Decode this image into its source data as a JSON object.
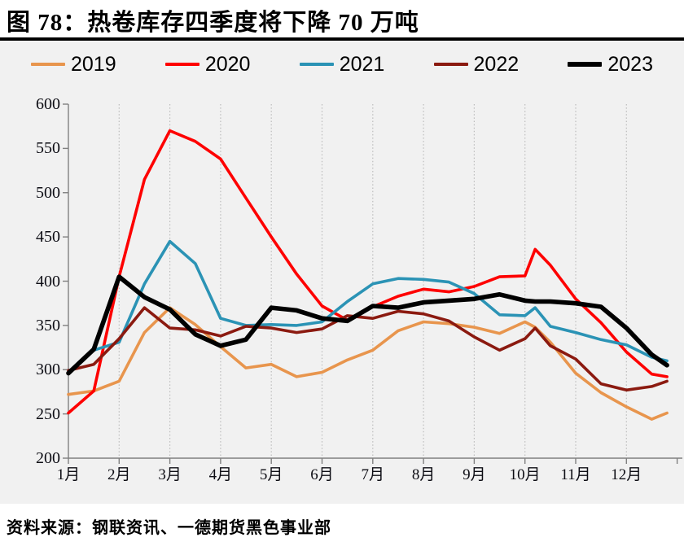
{
  "page": {
    "title": "图 78：热卷库存四季度将下降 70 万吨",
    "source": "资料来源：钢联资讯、一德期货黑色事业部"
  },
  "colors": {
    "panel_bg": "#f1f1f1",
    "grid": "#bcbcbc",
    "axis": "#808080",
    "text": "#0d0d14"
  },
  "chart_data": {
    "type": "line",
    "title": "图 78：热卷库存四季度将下降 70 万吨",
    "xlabel": "",
    "ylabel": "",
    "ylim": [
      200,
      600
    ],
    "yticks": [
      600,
      550,
      500,
      450,
      400,
      350,
      300,
      250,
      200
    ],
    "xticklabels": [
      "1月",
      "2月",
      "3月",
      "4月",
      "5月",
      "6月",
      "7月",
      "8月",
      "9月",
      "10月",
      "11月",
      "12月"
    ],
    "grid": "vertical-dotted",
    "legend_position": "top",
    "x_months": [
      1,
      1.5,
      2,
      2.5,
      3,
      3.5,
      4,
      4.5,
      5,
      5.5,
      6,
      6.5,
      7,
      7.5,
      8,
      8.5,
      9,
      9.5,
      10,
      10.2,
      10.5,
      11,
      11.5,
      12,
      12.5,
      12.8
    ],
    "series": [
      {
        "name": "2019",
        "color": "#E8954D",
        "width": 3.6,
        "values": [
          272,
          276,
          287,
          342,
          370,
          351,
          326,
          302,
          306,
          292,
          297,
          311,
          322,
          344,
          354,
          352,
          348,
          341,
          354,
          348,
          331,
          296,
          274,
          258,
          244,
          251
        ]
      },
      {
        "name": "2020",
        "color": "#FE0000",
        "width": 3.6,
        "values": [
          251,
          276,
          405,
          515,
          570,
          558,
          538,
          494,
          450,
          408,
          372,
          356,
          371,
          383,
          391,
          388,
          394,
          405,
          406,
          436,
          418,
          380,
          353,
          320,
          295,
          292
        ]
      },
      {
        "name": "2021",
        "color": "#2B93B5",
        "width": 3.6,
        "values": [
          null,
          322,
          331,
          397,
          445,
          420,
          358,
          350,
          351,
          350,
          354,
          377,
          397,
          403,
          402,
          399,
          386,
          362,
          361,
          370,
          349,
          342,
          334,
          328,
          314,
          310
        ]
      },
      {
        "name": "2022",
        "color": "#8B1A10",
        "width": 3.6,
        "values": [
          299,
          306,
          335,
          370,
          347,
          345,
          338,
          349,
          347,
          342,
          346,
          361,
          358,
          366,
          363,
          355,
          337,
          322,
          335,
          347,
          327,
          312,
          284,
          277,
          281,
          287
        ]
      },
      {
        "name": "2023",
        "color": "#000000",
        "width": 5.6,
        "values": [
          296,
          323,
          405,
          382,
          368,
          340,
          327,
          334,
          370,
          367,
          358,
          355,
          372,
          370,
          376,
          378,
          380,
          385,
          378,
          377,
          377,
          375,
          371,
          347,
          317,
          305
        ]
      }
    ]
  }
}
